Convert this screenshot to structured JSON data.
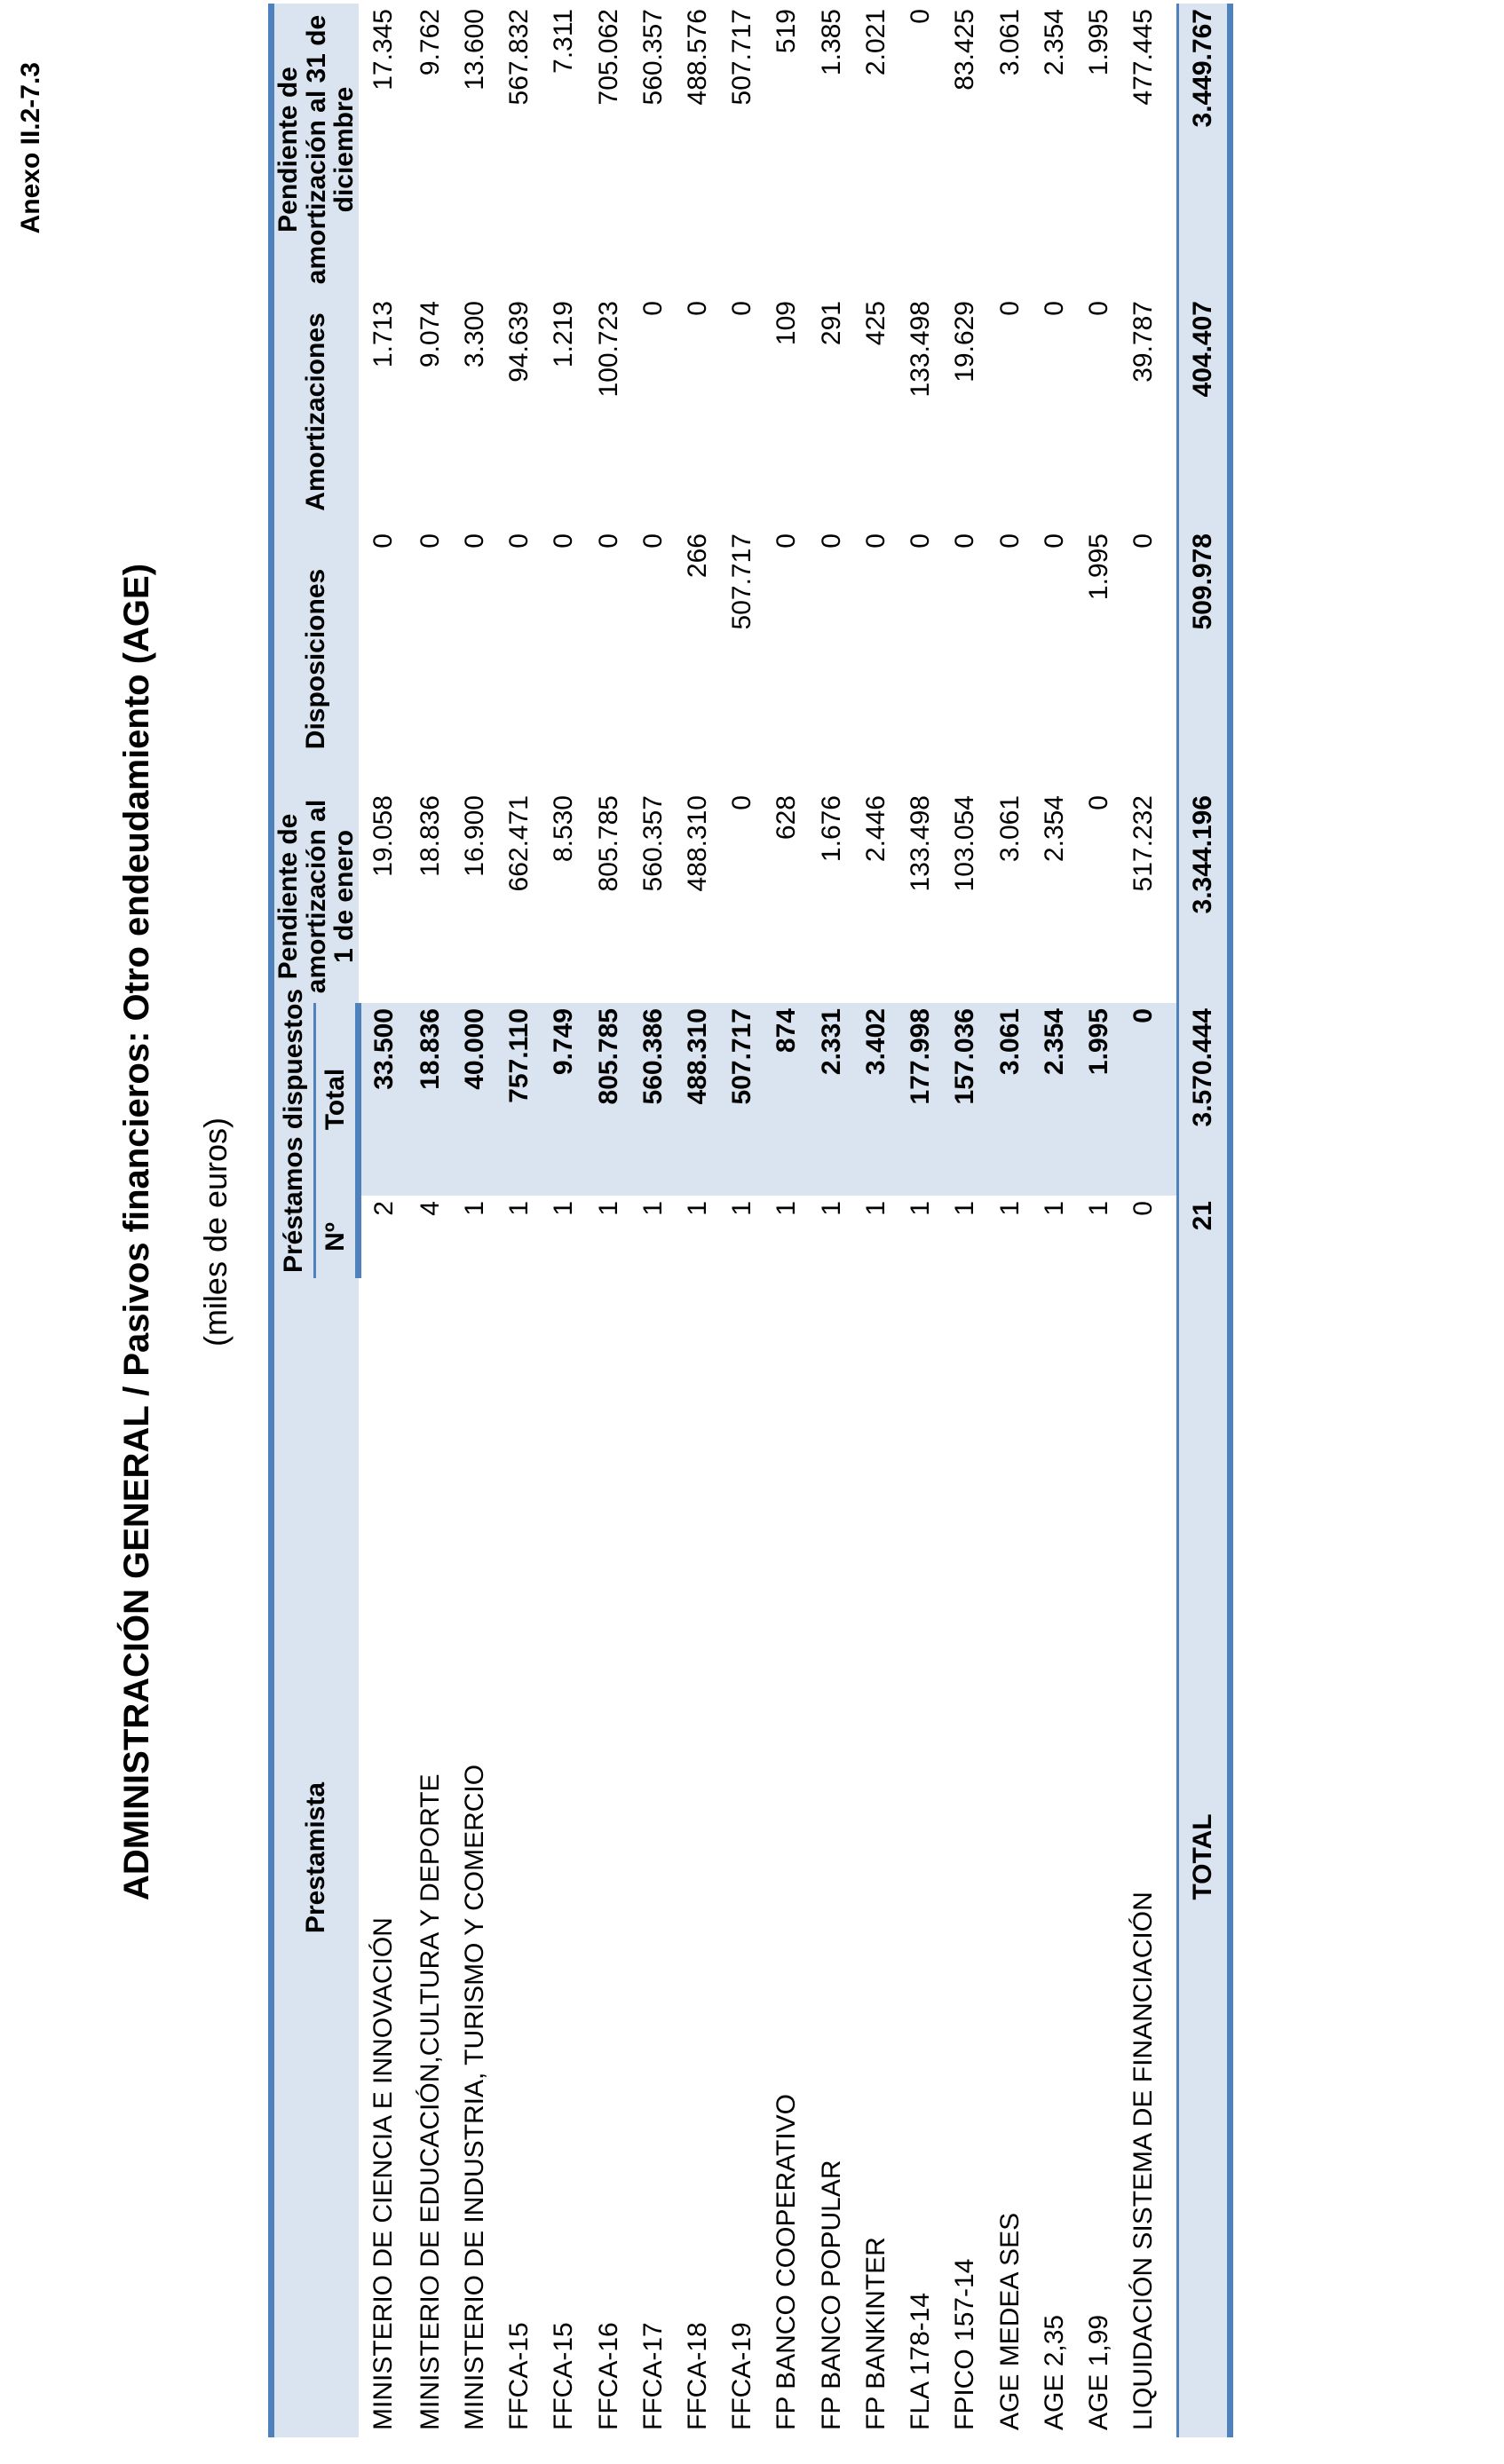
{
  "annex": "Anexo II.2-7.3",
  "title": "ADMINISTRACIÓN GENERAL  /  Pasivos financieros: Otro endeudamiento (AGE)",
  "units": "(miles de euros)",
  "table": {
    "headers": {
      "prestamista": "Prestamista",
      "prestamos_group": "Préstamos dispuestos",
      "n": "Nº",
      "total": "Total",
      "pendiente_enero": "Pendiente de amortización al 1 de enero",
      "disposiciones": "Disposiciones",
      "amortizaciones": "Amortizaciones",
      "pendiente_diciembre": "Pendiente de amortización al 31 de diciembre"
    },
    "rows": [
      {
        "prestamista": "MINISTERIO DE CIENCIA E INNOVACIÓN",
        "n": "2",
        "total": "33.500",
        "pend_ene": "19.058",
        "disp": "0",
        "amort": "1.713",
        "pend_dic": "17.345"
      },
      {
        "prestamista": "MINISTERIO DE EDUCACIÓN,CULTURA Y DEPORTE",
        "n": "4",
        "total": "18.836",
        "pend_ene": "18.836",
        "disp": "0",
        "amort": "9.074",
        "pend_dic": "9.762"
      },
      {
        "prestamista": "MINISTERIO DE INDUSTRIA, TURISMO Y COMERCIO",
        "n": "1",
        "total": "40.000",
        "pend_ene": "16.900",
        "disp": "0",
        "amort": "3.300",
        "pend_dic": "13.600"
      },
      {
        "prestamista": "FFCA-15",
        "n": "1",
        "total": "757.110",
        "pend_ene": "662.471",
        "disp": "0",
        "amort": "94.639",
        "pend_dic": "567.832"
      },
      {
        "prestamista": "FFCA-15",
        "n": "1",
        "total": "9.749",
        "pend_ene": "8.530",
        "disp": "0",
        "amort": "1.219",
        "pend_dic": "7.311"
      },
      {
        "prestamista": "FFCA-16",
        "n": "1",
        "total": "805.785",
        "pend_ene": "805.785",
        "disp": "0",
        "amort": "100.723",
        "pend_dic": "705.062"
      },
      {
        "prestamista": "FFCA-17",
        "n": "1",
        "total": "560.386",
        "pend_ene": "560.357",
        "disp": "0",
        "amort": "0",
        "pend_dic": "560.357"
      },
      {
        "prestamista": "FFCA-18",
        "n": "1",
        "total": "488.310",
        "pend_ene": "488.310",
        "disp": "266",
        "amort": "0",
        "pend_dic": "488.576"
      },
      {
        "prestamista": "FFCA-19",
        "n": "1",
        "total": "507.717",
        "pend_ene": "0",
        "disp": "507.717",
        "amort": "0",
        "pend_dic": "507.717"
      },
      {
        "prestamista": "FP BANCO COOPERATIVO",
        "n": "1",
        "total": "874",
        "pend_ene": "628",
        "disp": "0",
        "amort": "109",
        "pend_dic": "519"
      },
      {
        "prestamista": "FP BANCO POPULAR",
        "n": "1",
        "total": "2.331",
        "pend_ene": "1.676",
        "disp": "0",
        "amort": "291",
        "pend_dic": "1.385"
      },
      {
        "prestamista": "FP BANKINTER",
        "n": "1",
        "total": "3.402",
        "pend_ene": "2.446",
        "disp": "0",
        "amort": "425",
        "pend_dic": "2.021"
      },
      {
        "prestamista": "FLA 178-14",
        "n": "1",
        "total": "177.998",
        "pend_ene": "133.498",
        "disp": "0",
        "amort": "133.498",
        "pend_dic": "0"
      },
      {
        "prestamista": "FPICO 157-14",
        "n": "1",
        "total": "157.036",
        "pend_ene": "103.054",
        "disp": "0",
        "amort": "19.629",
        "pend_dic": "83.425"
      },
      {
        "prestamista": "AGE MEDEA SES",
        "n": "1",
        "total": "3.061",
        "pend_ene": "3.061",
        "disp": "0",
        "amort": "0",
        "pend_dic": "3.061"
      },
      {
        "prestamista": "AGE 2,35",
        "n": "1",
        "total": "2.354",
        "pend_ene": "2.354",
        "disp": "0",
        "amort": "0",
        "pend_dic": "2.354"
      },
      {
        "prestamista": "AGE 1,99",
        "n": "1",
        "total": "1.995",
        "pend_ene": "0",
        "disp": "1.995",
        "amort": "0",
        "pend_dic": "1.995"
      },
      {
        "prestamista": "LIQUIDACIÓN SISTEMA DE FINANCIACIÓN",
        "n": "0",
        "total": "0",
        "pend_ene": "517.232",
        "disp": "0",
        "amort": "39.787",
        "pend_dic": "477.445"
      }
    ],
    "total": {
      "label": "TOTAL",
      "n": "21",
      "total": "3.570.444",
      "pend_ene": "3.344.196",
      "disp": "509.978",
      "amort": "404.407",
      "pend_dic": "3.449.767"
    }
  }
}
